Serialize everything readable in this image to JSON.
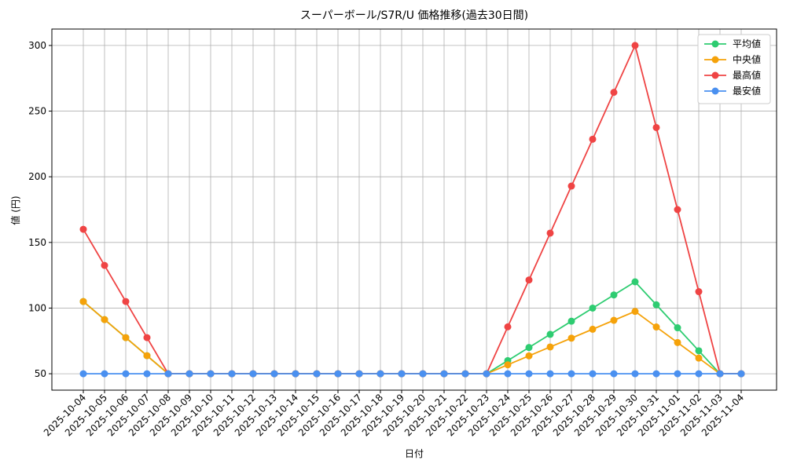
{
  "chart_data": {
    "type": "line",
    "title": "スーパーボール/S7R/U 価格推移(過去30日間)",
    "x_label": "日付",
    "y_label": "値 (円)",
    "categories": [
      "2025-10-04",
      "2025-10-05",
      "2025-10-06",
      "2025-10-07",
      "2025-10-08",
      "2025-10-09",
      "2025-10-10",
      "2025-10-11",
      "2025-10-12",
      "2025-10-13",
      "2025-10-14",
      "2025-10-15",
      "2025-10-16",
      "2025-10-17",
      "2025-10-18",
      "2025-10-19",
      "2025-10-20",
      "2025-10-21",
      "2025-10-22",
      "2025-10-23",
      "2025-10-24",
      "2025-10-25",
      "2025-10-26",
      "2025-10-27",
      "2025-10-28",
      "2025-10-29",
      "2025-10-30",
      "2025-10-31",
      "2025-11-01",
      "2025-11-02",
      "2025-11-03",
      "2025-11-04"
    ],
    "series": [
      {
        "name": "平均値",
        "color": "#2ecc71",
        "values": [
          105,
          91.25,
          77.5,
          63.75,
          50,
          50,
          50,
          50,
          50,
          50,
          50,
          50,
          50,
          50,
          50,
          50,
          50,
          50,
          50,
          50,
          60,
          70,
          80,
          90,
          100,
          110,
          120,
          102.5,
          85,
          67.5,
          50,
          50
        ]
      },
      {
        "name": "中央値",
        "color": "#f5a20a",
        "values": [
          105,
          91.25,
          77.5,
          63.75,
          50,
          50,
          50,
          50,
          50,
          50,
          50,
          50,
          50,
          50,
          50,
          50,
          50,
          50,
          50,
          50,
          56.8,
          63.6,
          70.4,
          77.1,
          83.9,
          90.7,
          97.5,
          85.6,
          73.75,
          61.9,
          50,
          50
        ]
      },
      {
        "name": "最高値",
        "color": "#ef4444",
        "values": [
          160,
          132.5,
          105,
          77.5,
          50,
          50,
          50,
          50,
          50,
          50,
          50,
          50,
          50,
          50,
          50,
          50,
          50,
          50,
          50,
          50,
          85.7,
          121.4,
          157.1,
          192.9,
          228.6,
          264.3,
          300,
          237.5,
          175,
          112.5,
          50,
          50
        ]
      },
      {
        "name": "最安値",
        "color": "#4a90f0",
        "values": [
          50,
          50,
          50,
          50,
          50,
          50,
          50,
          50,
          50,
          50,
          50,
          50,
          50,
          50,
          50,
          50,
          50,
          50,
          50,
          50,
          50,
          50,
          50,
          50,
          50,
          50,
          50,
          50,
          50,
          50,
          50,
          50
        ]
      }
    ],
    "ylim": [
      37.5,
      312.5
    ],
    "yticks": [
      50,
      100,
      150,
      200,
      250,
      300
    ],
    "grid": true,
    "legend": "upper right"
  }
}
